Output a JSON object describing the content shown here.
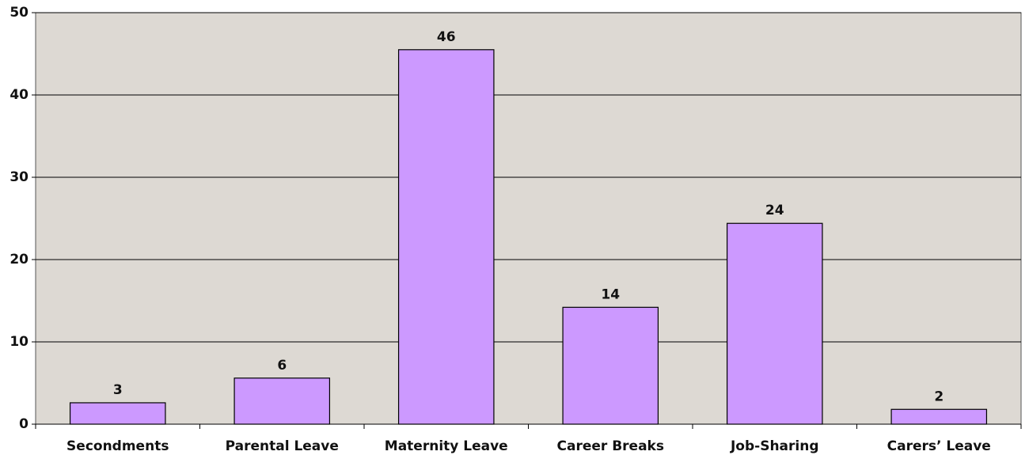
{
  "chart_data": {
    "type": "bar",
    "categories": [
      "Secondments",
      "Parental Leave",
      "Maternity Leave",
      "Career Breaks",
      "Job-Sharing",
      "Carers’ Leave"
    ],
    "values": [
      2.6,
      5.6,
      45.5,
      14.2,
      24.4,
      1.8
    ],
    "value_labels": [
      "3",
      "6",
      "46",
      "14",
      "24",
      "2"
    ],
    "color": "#cc99ff",
    "ylim": [
      0,
      50
    ],
    "yticks": [
      0,
      10,
      20,
      30,
      40,
      50
    ],
    "grid": true
  }
}
